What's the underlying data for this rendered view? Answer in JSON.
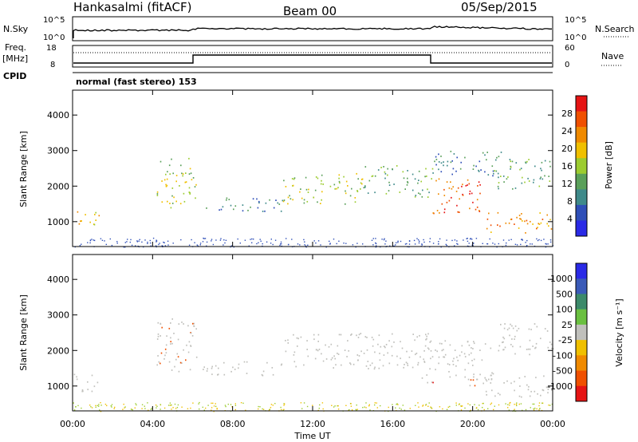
{
  "header": {
    "station": "Hankasalmi (fitACF)",
    "beam": "Beam 00",
    "date": "05/Sep/2015"
  },
  "status_strip": {
    "nsky_label": "N.Sky",
    "nsky_ticks": [
      "10^5",
      "10^0"
    ],
    "nsearch_label": "N.Search",
    "nsearch_ticks": [
      "10^5",
      "10^0"
    ],
    "freq_label_line1": "Freq.",
    "freq_label_line2": "[MHz]",
    "freq_ticks": [
      "18",
      "8"
    ],
    "nave_label": "Nave",
    "nave_ticks": [
      "60",
      "0"
    ],
    "cpid_label": "CPID",
    "cpid_text": "normal (fast stereo) 153"
  },
  "colors": {
    "power_scale": [
      "#2a2ae6",
      "#2f4fb8",
      "#3f8a8a",
      "#5aa05a",
      "#9ccc30",
      "#f0c000",
      "#f08a00",
      "#f05000",
      "#e61414"
    ],
    "velocity_scale": [
      "#2a2ae6",
      "#3a5ab8",
      "#3c8a6a",
      "#6ac040",
      "#bebebe",
      "#f0c000",
      "#f08a00",
      "#f05000",
      "#e61414"
    ],
    "grey": "#c0c0bc"
  },
  "chart_data": [
    {
      "type": "heatmap",
      "name": "power",
      "ylabel": "Slant Range [km]",
      "xlabel": "",
      "x_ticks": [
        "00:00",
        "04:00",
        "08:00",
        "12:00",
        "16:00",
        "20:00",
        "00:00"
      ],
      "y_ticks": [
        "1000",
        "2000",
        "3000",
        "4000"
      ],
      "ylim": [
        300,
        4700
      ],
      "xlim_hours": [
        0,
        24
      ],
      "colorbar_label": "Power [dB]",
      "colorbar_ticks": [
        "4",
        "8",
        "12",
        "16",
        "20",
        "24",
        "28"
      ],
      "scatter_bands": [
        {
          "t0": 0.0,
          "t1": 1.3,
          "r0": 850,
          "r1": 1350,
          "level": 5
        },
        {
          "t0": 4.2,
          "t1": 6.2,
          "r0": 1400,
          "r1": 2800,
          "level": 4
        },
        {
          "t0": 6.5,
          "t1": 10.5,
          "r0": 1300,
          "r1": 1700,
          "level": 2
        },
        {
          "t0": 10.5,
          "t1": 14.5,
          "r0": 1500,
          "r1": 2400,
          "level": 4
        },
        {
          "t0": 14.5,
          "t1": 18.0,
          "r0": 1700,
          "r1": 2600,
          "level": 3
        },
        {
          "t0": 18.0,
          "t1": 20.5,
          "r0": 1250,
          "r1": 2300,
          "level": 7
        },
        {
          "t0": 18.0,
          "t1": 21.5,
          "r0": 2300,
          "r1": 3000,
          "level": 2
        },
        {
          "t0": 20.5,
          "t1": 24.0,
          "r0": 700,
          "r1": 1300,
          "level": 6
        },
        {
          "t0": 21.0,
          "t1": 24.0,
          "r0": 1900,
          "r1": 2800,
          "level": 3
        }
      ]
    },
    {
      "type": "heatmap",
      "name": "velocity",
      "ylabel": "Slant Range [km]",
      "xlabel": "Time UT",
      "x_ticks": [
        "00:00",
        "04:00",
        "08:00",
        "12:00",
        "16:00",
        "20:00",
        "00:00"
      ],
      "y_ticks": [
        "1000",
        "2000",
        "3000",
        "4000"
      ],
      "ylim": [
        300,
        4700
      ],
      "xlim_hours": [
        0,
        24
      ],
      "colorbar_label": "Velocity [m s⁻¹]",
      "colorbar_ticks": [
        "1000",
        "500",
        "100",
        "25",
        "-25",
        "-100",
        "-500",
        "-1000"
      ],
      "scatter_bands": [
        {
          "t0": 0.0,
          "t1": 1.3,
          "r0": 850,
          "r1": 1350,
          "level": 4
        },
        {
          "t0": 4.2,
          "t1": 6.2,
          "r0": 1400,
          "r1": 3000,
          "level": 7
        },
        {
          "t0": 6.5,
          "t1": 10.5,
          "r0": 1300,
          "r1": 1700,
          "level": 4
        },
        {
          "t0": 10.5,
          "t1": 18.0,
          "r0": 1500,
          "r1": 2500,
          "level": 4
        },
        {
          "t0": 17.0,
          "t1": 18.0,
          "r0": 1100,
          "r1": 1400,
          "level": 8
        },
        {
          "t0": 18.0,
          "t1": 21.0,
          "r0": 1200,
          "r1": 2300,
          "level": 4
        },
        {
          "t0": 19.5,
          "t1": 20.5,
          "r0": 1000,
          "r1": 1400,
          "level": 7
        },
        {
          "t0": 20.5,
          "t1": 24.0,
          "r0": 700,
          "r1": 1300,
          "level": 4
        },
        {
          "t0": 21.0,
          "t1": 24.0,
          "r0": 1900,
          "r1": 2800,
          "level": 4
        }
      ]
    }
  ]
}
